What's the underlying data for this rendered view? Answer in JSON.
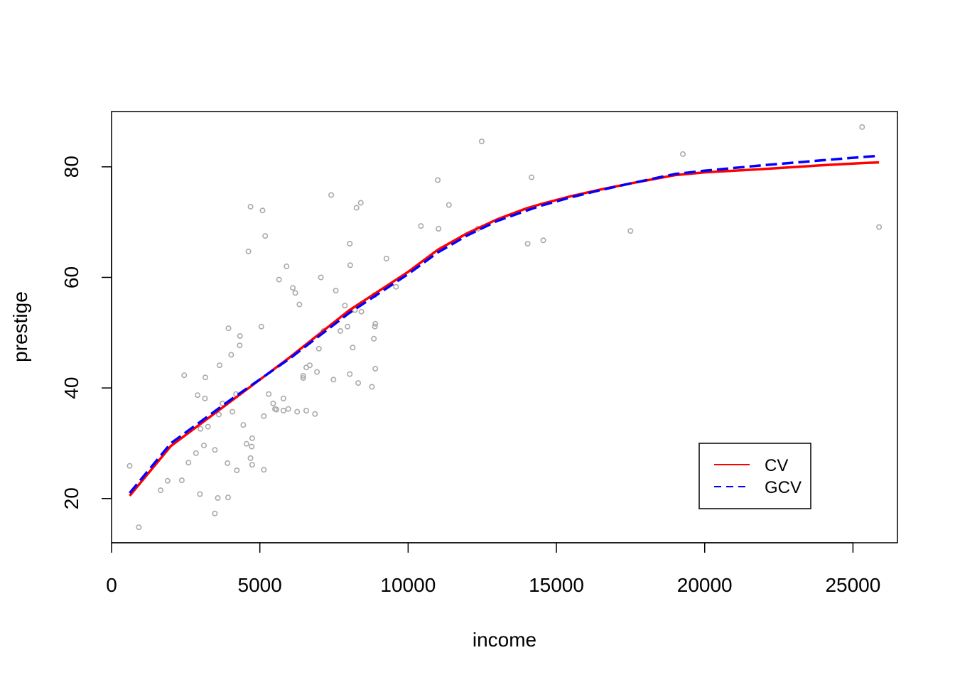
{
  "chart_data": {
    "type": "scatter",
    "title": "",
    "xlabel": "income",
    "ylabel": "prestige",
    "xlim": [
      0,
      26500
    ],
    "ylim": [
      12,
      90
    ],
    "xticks": [
      0,
      5000,
      10000,
      15000,
      20000,
      25000
    ],
    "yticks": [
      20,
      40,
      60,
      80
    ],
    "grid": false,
    "legend_position": "bottom-right",
    "points_color": "#aaaaaa",
    "points": [
      [
        611,
        25.9
      ],
      [
        918,
        14.8
      ],
      [
        1656,
        21.5
      ],
      [
        1890,
        23.2
      ],
      [
        2370,
        23.3
      ],
      [
        2448,
        42.3
      ],
      [
        2594,
        26.5
      ],
      [
        2847,
        28.2
      ],
      [
        2901,
        38.7
      ],
      [
        2979,
        20.8
      ],
      [
        3000,
        32.6
      ],
      [
        3116,
        29.6
      ],
      [
        3148,
        38.1
      ],
      [
        3161,
        41.9
      ],
      [
        3252,
        33.0
      ],
      [
        3485,
        28.8
      ],
      [
        3485,
        17.3
      ],
      [
        3582,
        20.1
      ],
      [
        3643,
        44.1
      ],
      [
        3617,
        35.2
      ],
      [
        3739,
        37.2
      ],
      [
        3910,
        26.4
      ],
      [
        3930,
        20.2
      ],
      [
        3942,
        50.8
      ],
      [
        4036,
        46.0
      ],
      [
        4075,
        35.7
      ],
      [
        4199,
        38.9
      ],
      [
        4224,
        25.1
      ],
      [
        4330,
        49.4
      ],
      [
        4319,
        47.7
      ],
      [
        4443,
        33.3
      ],
      [
        4549,
        29.9
      ],
      [
        4614,
        64.7
      ],
      [
        4686,
        72.8
      ],
      [
        4685,
        27.3
      ],
      [
        4741,
        30.9
      ],
      [
        4741,
        26.1
      ],
      [
        4728,
        29.4
      ],
      [
        5052,
        51.1
      ],
      [
        5092,
        72.1
      ],
      [
        5134,
        34.9
      ],
      [
        5134,
        25.2
      ],
      [
        5180,
        67.5
      ],
      [
        5299,
        38.9
      ],
      [
        5449,
        37.2
      ],
      [
        5511,
        36.2
      ],
      [
        5562,
        36.1
      ],
      [
        5648,
        59.6
      ],
      [
        5795,
        38.1
      ],
      [
        5795,
        35.9
      ],
      [
        5902,
        62.0
      ],
      [
        5959,
        36.2
      ],
      [
        6112,
        58.1
      ],
      [
        6197,
        57.2
      ],
      [
        6259,
        35.7
      ],
      [
        6336,
        55.1
      ],
      [
        6462,
        41.8
      ],
      [
        6462,
        42.2
      ],
      [
        6565,
        43.7
      ],
      [
        6565,
        35.9
      ],
      [
        6686,
        44.1
      ],
      [
        6860,
        35.3
      ],
      [
        6928,
        42.9
      ],
      [
        6992,
        47.1
      ],
      [
        7059,
        60.0
      ],
      [
        7147,
        50.3
      ],
      [
        7405,
        74.9
      ],
      [
        7482,
        41.5
      ],
      [
        7562,
        57.6
      ],
      [
        7716,
        50.3
      ],
      [
        7869,
        54.9
      ],
      [
        7956,
        51.1
      ],
      [
        8034,
        66.1
      ],
      [
        8049,
        62.2
      ],
      [
        8034,
        42.5
      ],
      [
        8131,
        47.3
      ],
      [
        8206,
        54.1
      ],
      [
        8258,
        72.6
      ],
      [
        8316,
        40.9
      ],
      [
        8403,
        73.5
      ],
      [
        8425,
        53.8
      ],
      [
        8780,
        40.2
      ],
      [
        8845,
        48.9
      ],
      [
        8865,
        56.8
      ],
      [
        8880,
        51.1
      ],
      [
        8895,
        51.6
      ],
      [
        8895,
        43.5
      ],
      [
        9269,
        63.4
      ],
      [
        9593,
        58.3
      ],
      [
        10432,
        69.3
      ],
      [
        11000,
        77.6
      ],
      [
        11023,
        68.8
      ],
      [
        11377,
        73.1
      ],
      [
        12351,
        68.8
      ],
      [
        12480,
        84.6
      ],
      [
        14032,
        66.1
      ],
      [
        14163,
        78.1
      ],
      [
        14558,
        66.7
      ],
      [
        17498,
        68.4
      ],
      [
        19263,
        82.3
      ],
      [
        25308,
        87.2
      ],
      [
        25879,
        69.1
      ]
    ],
    "series": [
      {
        "name": "CV",
        "color": "#ff0000",
        "dash": "solid",
        "x": [
          611,
          2000,
          4000,
          6000,
          8000,
          10000,
          11000,
          12000,
          13000,
          14000,
          14500,
          15500,
          16500,
          17500,
          19000,
          20000,
          22000,
          24000,
          25400,
          25879
        ],
        "y": [
          20.5,
          29.5,
          37.5,
          45.5,
          54.0,
          61.0,
          65.0,
          68.0,
          70.5,
          72.5,
          73.3,
          74.7,
          75.9,
          77.0,
          78.5,
          79.0,
          79.6,
          80.3,
          80.7,
          80.8
        ]
      },
      {
        "name": "GCV",
        "color": "#0000ff",
        "dash": "dashed",
        "x": [
          611,
          2000,
          4000,
          6000,
          8000,
          10000,
          11000,
          12000,
          13000,
          14000,
          14500,
          15500,
          16500,
          17500,
          19000,
          20000,
          22000,
          24000,
          25400,
          25879
        ],
        "y": [
          21.0,
          30.0,
          37.8,
          45.3,
          53.5,
          60.6,
          64.5,
          67.6,
          70.2,
          72.1,
          73.0,
          74.5,
          75.8,
          77.0,
          78.7,
          79.3,
          80.3,
          81.2,
          81.8,
          82.0
        ]
      }
    ]
  }
}
